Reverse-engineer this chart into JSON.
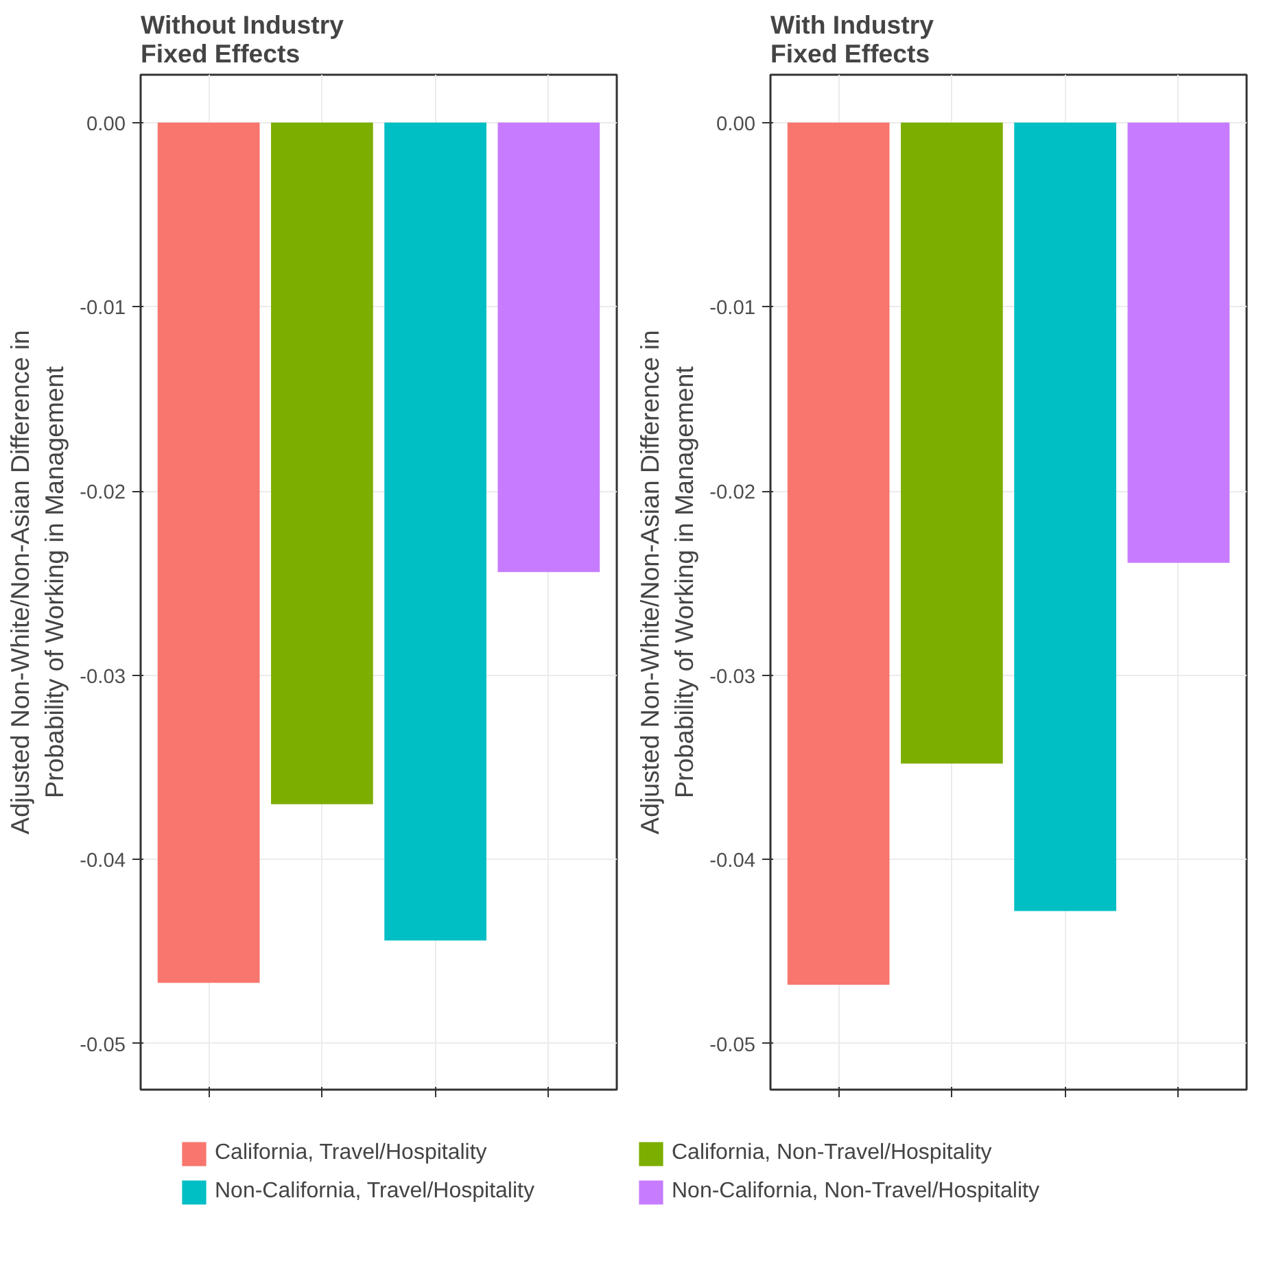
{
  "chart_data": [
    {
      "type": "bar",
      "title": "Without Industry\nFixed Effects",
      "ylabel": "Adjusted Non-White/Non-Asian Difference in\nProbability of Working in Management",
      "categories": [
        null,
        null,
        null,
        null
      ],
      "series": [
        {
          "name": "California, Travel/Hospitality",
          "color": "#f8766d",
          "values": [
            -0.0467,
            null,
            null,
            null
          ]
        },
        {
          "name": "California, Non-Travel/Hospitality",
          "color": "#7cae00",
          "values": [
            null,
            -0.037,
            null,
            null
          ]
        },
        {
          "name": "Non-California, Travel/Hospitality",
          "color": "#00bfc4",
          "values": [
            null,
            null,
            -0.0444,
            null
          ]
        },
        {
          "name": "Non-California, Non-Travel/Hospitality",
          "color": "#c77cff",
          "values": [
            null,
            null,
            null,
            -0.0244
          ]
        }
      ],
      "ylim": [
        -0.0525,
        0.0026
      ],
      "yticks": [
        {
          "value": 0,
          "label": "0.00"
        },
        {
          "value": -0.01,
          "label": "-0.01"
        },
        {
          "value": -0.02,
          "label": "-0.02"
        },
        {
          "value": -0.03,
          "label": "-0.03"
        },
        {
          "value": -0.04,
          "label": "-0.04"
        },
        {
          "value": -0.05,
          "label": "-0.05"
        }
      ],
      "grid": true,
      "legend": "bottom"
    },
    {
      "type": "bar",
      "title": "With Industry\nFixed Effects",
      "ylabel": "Adjusted Non-White/Non-Asian Difference in\nProbability of Working in Management",
      "categories": [
        null,
        null,
        null,
        null
      ],
      "series": [
        {
          "color": "#f8766d",
          "values": [
            -0.0468,
            null,
            null,
            null
          ]
        },
        {
          "color": "#7cae00",
          "values": [
            null,
            -0.0348,
            null,
            null
          ]
        },
        {
          "color": "#00bfc4",
          "values": [
            null,
            null,
            -0.0428,
            null
          ]
        },
        {
          "color": "#c77cff",
          "values": [
            null,
            null,
            null,
            -0.0239
          ]
        }
      ],
      "ylim": [
        -0.0525,
        0.0026
      ],
      "yticks": [
        {
          "value": 0,
          "label": "0.00"
        },
        {
          "value": -0.01,
          "label": "-0.01"
        },
        {
          "value": -0.02,
          "label": "-0.02"
        },
        {
          "value": -0.03,
          "label": "-0.03"
        },
        {
          "value": -0.04,
          "label": "-0.04"
        },
        {
          "value": -0.05,
          "label": "-0.05"
        }
      ],
      "grid": true
    }
  ]
}
